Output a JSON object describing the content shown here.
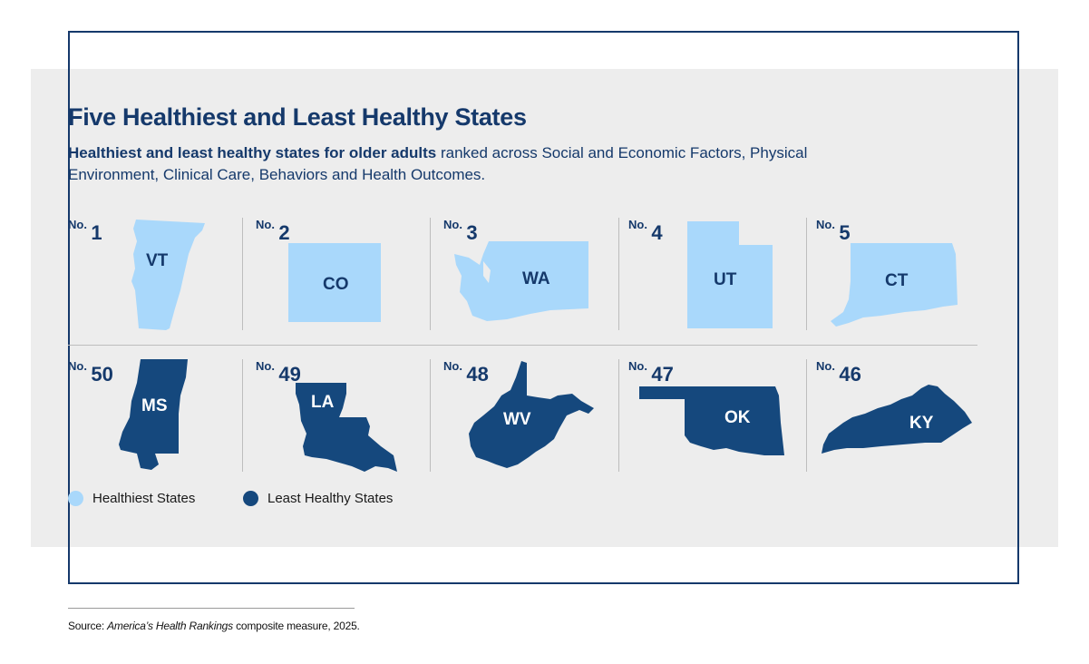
{
  "title": "Five Healthiest and Least Healthy States",
  "subtitle_bold": "Healthiest and least healthy states for older adults",
  "subtitle_rest": " ranked across Social and Economic Factors, Physical Environment, Clinical Care, Behaviors and Health Outcomes.",
  "rank_prefix": "No.",
  "colors": {
    "healthiest": "#a9d8fb",
    "least_healthy": "#15487d",
    "accent": "#15396b",
    "panel": "#ededed"
  },
  "healthiest": [
    {
      "rank": "1",
      "state": "VT"
    },
    {
      "rank": "2",
      "state": "CO"
    },
    {
      "rank": "3",
      "state": "WA"
    },
    {
      "rank": "4",
      "state": "UT"
    },
    {
      "rank": "5",
      "state": "CT"
    }
  ],
  "least_healthy": [
    {
      "rank": "50",
      "state": "MS"
    },
    {
      "rank": "49",
      "state": "LA"
    },
    {
      "rank": "48",
      "state": "WV"
    },
    {
      "rank": "47",
      "state": "OK"
    },
    {
      "rank": "46",
      "state": "KY"
    }
  ],
  "legend": {
    "healthiest": "Healthiest States",
    "least_healthy": "Least Healthy States"
  },
  "source_prefix": "Source: ",
  "source_italic": "America’s Health Rankings",
  "source_rest": " composite measure, 2025."
}
